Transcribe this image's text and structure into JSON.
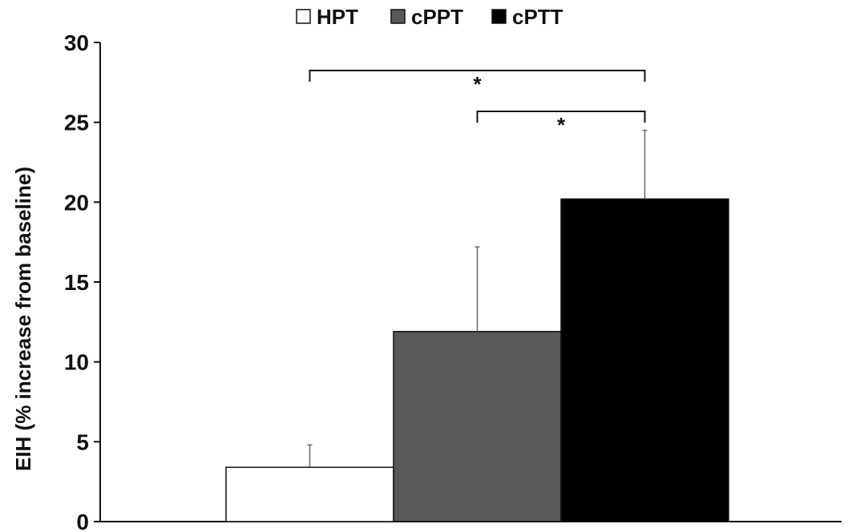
{
  "chart_data": {
    "type": "bar",
    "title": "",
    "xlabel": "",
    "ylabel": "EIH (% increase from baseline)",
    "ylim": [
      0,
      30
    ],
    "yticks": [
      0,
      5,
      10,
      15,
      20,
      25,
      30
    ],
    "grid": false,
    "legend_position": "top",
    "series": [
      {
        "name": "HPT",
        "value": 3.4,
        "error": 1.4,
        "color": "#ffffff"
      },
      {
        "name": "cPPT",
        "value": 11.9,
        "error": 5.3,
        "color": "#585858"
      },
      {
        "name": "cPTT",
        "value": 20.2,
        "error": 4.3,
        "color": "#000000"
      }
    ],
    "significance": [
      {
        "from": "HPT",
        "to": "cPTT",
        "label": "*"
      },
      {
        "from": "cPPT",
        "to": "cPTT",
        "label": "*"
      }
    ]
  }
}
